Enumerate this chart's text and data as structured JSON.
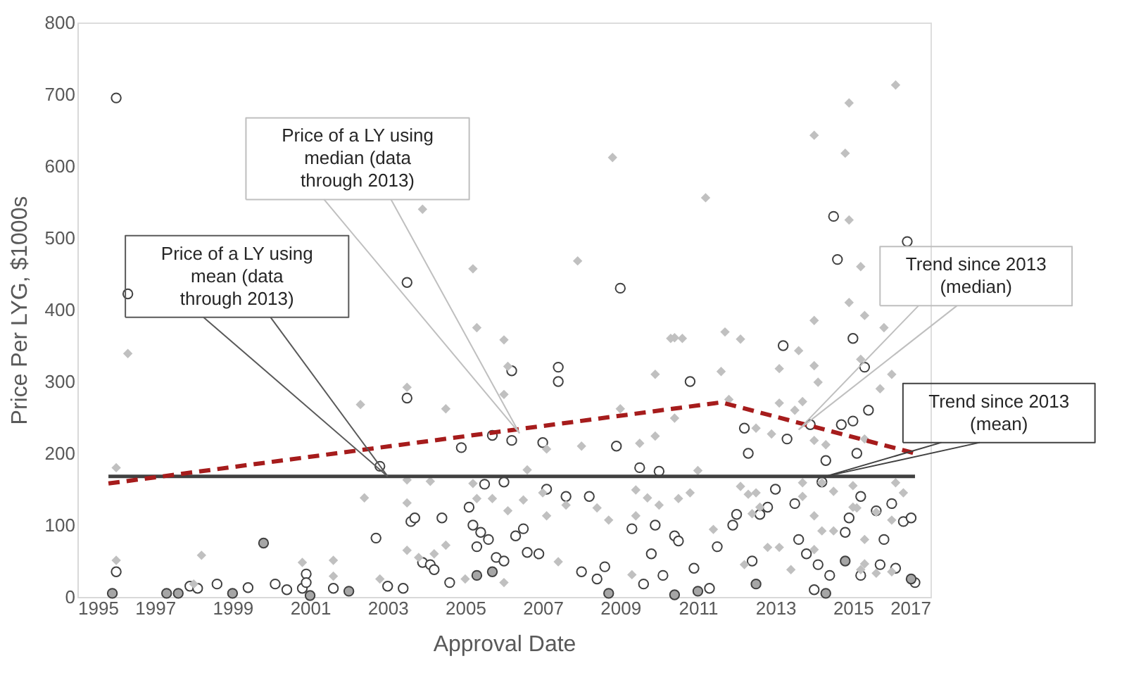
{
  "chart_data": {
    "type": "scatter",
    "xlabel": "Approval Date",
    "ylabel": "Price Per LYG, $1000s",
    "xlim": [
      1995,
      2017
    ],
    "xticks": [
      1995,
      1997,
      1999,
      2001,
      2003,
      2005,
      2007,
      2009,
      2011,
      2013,
      2015,
      2017
    ],
    "ylim": [
      0,
      800
    ],
    "yticks": [
      0,
      100,
      200,
      300,
      400,
      500,
      600,
      700,
      800
    ],
    "grid": false,
    "legend": false,
    "series": [
      {
        "type": "scatter",
        "marker": "diamond",
        "color": "#c0c0c0",
        "x": [
          1996.3,
          1996.0,
          1996.0,
          1998.2,
          1998.0,
          2000.8,
          2001.6,
          2001.6,
          2002.3,
          2002.4,
          2002.8,
          2008.8,
          2007.9,
          2005.2,
          2003.9,
          2005.3,
          2006.0,
          2006.1,
          2006.0,
          2003.5,
          2004.5,
          2009.9,
          2010.3,
          2009.0,
          2008.0,
          2009.9,
          2009.5,
          2007.1,
          2006.6,
          2007.0,
          2004.1,
          2003.5,
          2005.2,
          2005.3,
          2005.7,
          2006.5,
          2006.1,
          2007.1,
          2007.6,
          2008.4,
          2008.7,
          2009.4,
          2009.4,
          2009.7,
          2010.0,
          2003.5,
          2003.5,
          2004.5,
          2004.2,
          2003.8,
          2005.0,
          2006.0,
          2007.4,
          2009.3,
          2016.1,
          2014.9,
          2014.0,
          2014.8,
          2011.2,
          2014.9,
          2015.2,
          2014.9,
          2014.0,
          2015.3,
          2015.8,
          2010.4,
          2010.6,
          2011.7,
          2012.1,
          2011.6,
          2013.1,
          2013.6,
          2014.0,
          2014.1,
          2015.2,
          2015.7,
          2016.0,
          2010.4,
          2011.8,
          2013.1,
          2013.5,
          2013.7,
          2012.9,
          2012.5,
          2014.0,
          2014.3,
          2015.3,
          2014.2,
          2013.7,
          2012.5,
          2012.1,
          2012.3,
          2011.0,
          2010.8,
          2010.5,
          2013.7,
          2015.0,
          2014.5,
          2016.1,
          2016.3,
          2012.4,
          2014.0,
          2015.0,
          2015.1,
          2015.6,
          2012.6,
          2011.4,
          2014.2,
          2014.5,
          2015.3,
          2016.0,
          2012.8,
          2013.1,
          2014.0,
          2012.2,
          2013.4,
          2015.3,
          2016.0,
          2015.6,
          2015.2
        ],
        "values": [
          339,
          180,
          51,
          58,
          18,
          48,
          51,
          29,
          268,
          138,
          25,
          612,
          468,
          457,
          540,
          375,
          358,
          321,
          282,
          292,
          262,
          310,
          360,
          262,
          210,
          224,
          214,
          206,
          177,
          145,
          161,
          163,
          158,
          137,
          137,
          135,
          120,
          113,
          128,
          124,
          107,
          113,
          149,
          138,
          128,
          131,
          65,
          72,
          60,
          55,
          25,
          20,
          49,
          31,
          713,
          688,
          643,
          618,
          556,
          525,
          460,
          410,
          385,
          392,
          375,
          361,
          360,
          369,
          359,
          314,
          318,
          343,
          322,
          299,
          331,
          290,
          310,
          249,
          275,
          270,
          260,
          272,
          227,
          235,
          218,
          212,
          220,
          159,
          159,
          145,
          154,
          143,
          176,
          145,
          137,
          140,
          155,
          147,
          159,
          145,
          116,
          113,
          125,
          124,
          118,
          125,
          94,
          92,
          92,
          80,
          107,
          69,
          69,
          66,
          45,
          38,
          46,
          35,
          33,
          38
        ]
      },
      {
        "type": "scatter",
        "marker": "circle",
        "color": "#ffffff",
        "x": [
          1996.0,
          1996.3,
          1996.0,
          1997.9,
          1998.1,
          1998.6,
          1999.4,
          2000.1,
          2000.4,
          2000.8,
          2000.9,
          2000.9,
          2001.6,
          2002.7,
          2002.8,
          2003.4,
          2003.0,
          2003.5,
          2003.5,
          2003.6,
          2003.7,
          2003.9,
          2004.1,
          2004.2,
          2004.4,
          2004.6,
          2004.9,
          2005.1,
          2005.2,
          2005.3,
          2005.4,
          2005.5,
          2005.6,
          2005.7,
          2005.8,
          2006.0,
          2006.0,
          2006.2,
          2006.2,
          2006.3,
          2006.5,
          2006.6,
          2006.9,
          2007.0,
          2007.1,
          2007.4,
          2007.4,
          2007.6,
          2008.0,
          2008.2,
          2008.4,
          2008.6,
          2008.9,
          2009.0,
          2009.3,
          2009.5,
          2009.6,
          2009.8,
          2009.9,
          2010.0,
          2010.1,
          2010.4,
          2010.5,
          2010.8,
          2010.9,
          2011.3,
          2011.5,
          2011.9,
          2012.0,
          2012.2,
          2012.3,
          2012.4,
          2012.6,
          2012.8,
          2013.0,
          2013.2,
          2013.3,
          2013.5,
          2013.6,
          2013.8,
          2013.9,
          2014.0,
          2014.1,
          2014.2,
          2014.3,
          2014.4,
          2014.5,
          2014.6,
          2014.7,
          2014.8,
          2014.9,
          2015.0,
          2015.0,
          2015.1,
          2015.2,
          2015.2,
          2015.3,
          2015.4,
          2015.6,
          2015.7,
          2015.8,
          2016.0,
          2016.1,
          2016.3,
          2016.4,
          2016.5,
          2016.6
        ],
        "values": [
          695,
          422,
          35,
          15,
          12,
          18,
          13,
          18,
          10,
          12,
          32,
          20,
          12,
          82,
          182,
          12,
          15,
          438,
          277,
          105,
          110,
          48,
          45,
          38,
          110,
          20,
          208,
          125,
          100,
          70,
          90,
          157,
          80,
          225,
          55,
          50,
          160,
          315,
          218,
          85,
          95,
          62,
          60,
          215,
          150,
          300,
          320,
          140,
          35,
          140,
          25,
          42,
          210,
          430,
          95,
          180,
          18,
          60,
          100,
          175,
          30,
          85,
          78,
          300,
          40,
          12,
          70,
          100,
          115,
          235,
          200,
          50,
          115,
          125,
          150,
          350,
          220,
          130,
          80,
          60,
          240,
          10,
          45,
          160,
          190,
          30,
          530,
          470,
          240,
          90,
          110,
          360,
          245,
          200,
          140,
          30,
          320,
          260,
          120,
          45,
          80,
          130,
          40,
          105,
          495,
          110,
          20
        ]
      },
      {
        "type": "scatter",
        "marker": "circle",
        "color": "#a6a6a6",
        "x": [
          1995.9,
          1997.3,
          1997.6,
          1999.0,
          1999.8,
          2001.0,
          2002.0,
          2005.3,
          2005.7,
          2008.7,
          2010.4,
          2011.0,
          2012.5,
          2014.3,
          2014.8,
          2016.5
        ],
        "values": [
          5,
          5,
          5,
          5,
          75,
          2,
          8,
          30,
          35,
          5,
          3,
          8,
          18,
          5,
          50,
          25
        ]
      },
      {
        "type": "line",
        "line_style": "solid",
        "color": "#404040",
        "x": [
          1995.8,
          2016.6
        ],
        "values": [
          168,
          168
        ]
      },
      {
        "type": "line",
        "line_style": "dashed",
        "color": "#a61c1c",
        "x": [
          1995.8,
          2011.6,
          2016.6
        ],
        "values": [
          158,
          271,
          200
        ]
      }
    ],
    "annotations": [
      {
        "text": "Price of a LY using\nmean (data\nthrough 2013)",
        "x": 2003.0,
        "y": 168
      },
      {
        "text": "Price of a LY using\nmedian (data\nthrough 2013)",
        "x": 2006.4,
        "y": 228
      },
      {
        "text": "Trend since 2013\n(median)",
        "x": 2013.6,
        "y": 233
      },
      {
        "text": "Trend since 2013\n(mean)",
        "x": 2014.3,
        "y": 168
      }
    ]
  }
}
